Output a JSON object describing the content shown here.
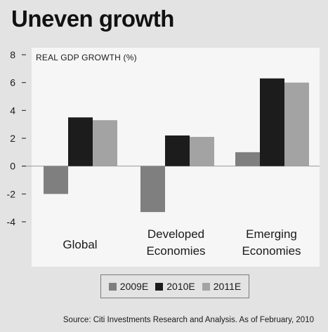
{
  "title": "Uneven growth",
  "source": "Source: Citi Investments Research and Analysis. As of February, 2010",
  "colors": {
    "2009E": "#7f7f7f",
    "2010E": "#1c1c1c",
    "2011E": "#a3a3a3",
    "panel": "#f6f6f6",
    "background": "#e3e3e3"
  },
  "chart_data": {
    "type": "bar",
    "title": "Uneven growth",
    "ylabel": "REAL GDP GROWTH (%)",
    "xlabel": "",
    "categories": [
      "Global",
      "Developed Economies",
      "Emerging Economies"
    ],
    "category_lines": [
      [
        "Global"
      ],
      [
        "Developed",
        "Economies"
      ],
      [
        "Emerging",
        "Economies"
      ]
    ],
    "series": [
      {
        "name": "2009E",
        "values": [
          -2.0,
          -3.3,
          1.0
        ]
      },
      {
        "name": "2010E",
        "values": [
          3.5,
          2.2,
          6.3
        ]
      },
      {
        "name": "2011E",
        "values": [
          3.3,
          2.1,
          6.0
        ]
      }
    ],
    "ylim": [
      -4,
      8
    ],
    "yticks": [
      "8",
      "6",
      "4",
      "2",
      "0",
      "-2",
      "-4"
    ],
    "grid": false,
    "legend": "bottom"
  }
}
